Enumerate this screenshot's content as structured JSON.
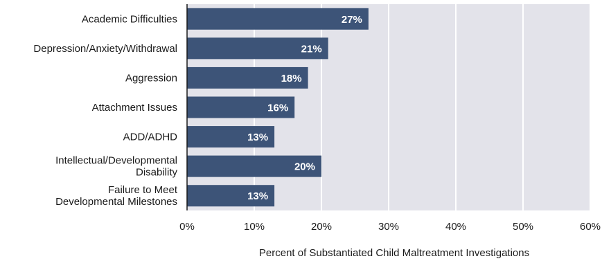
{
  "chart_data": {
    "type": "bar",
    "orientation": "horizontal",
    "categories": [
      [
        "Academic Difficulties"
      ],
      [
        "Depression/Anxiety/Withdrawal"
      ],
      [
        "Aggression"
      ],
      [
        "Attachment Issues"
      ],
      [
        "ADD/ADHD"
      ],
      [
        "Intellectual/Developmental",
        "Disability"
      ],
      [
        "Failure to Meet",
        "Developmental Milestones"
      ]
    ],
    "values": [
      27,
      21,
      18,
      16,
      13,
      20,
      13
    ],
    "value_labels": [
      "27%",
      "21%",
      "18%",
      "16%",
      "13%",
      "20%",
      "13%"
    ],
    "xlim": [
      0,
      60
    ],
    "xticks": [
      0,
      10,
      20,
      30,
      40,
      50,
      60
    ],
    "xtick_labels": [
      "0%",
      "10%",
      "20%",
      "30%",
      "40%",
      "50%",
      "60%"
    ],
    "xlabel": "Percent of Substantiated Child Maltreatment Investigations",
    "title": "",
    "grid": "vertical",
    "colors": {
      "bar": "#3d5478",
      "plot_background": "#e3e3ea",
      "grid": "#ffffff",
      "axis": "#1a1a1a"
    }
  }
}
